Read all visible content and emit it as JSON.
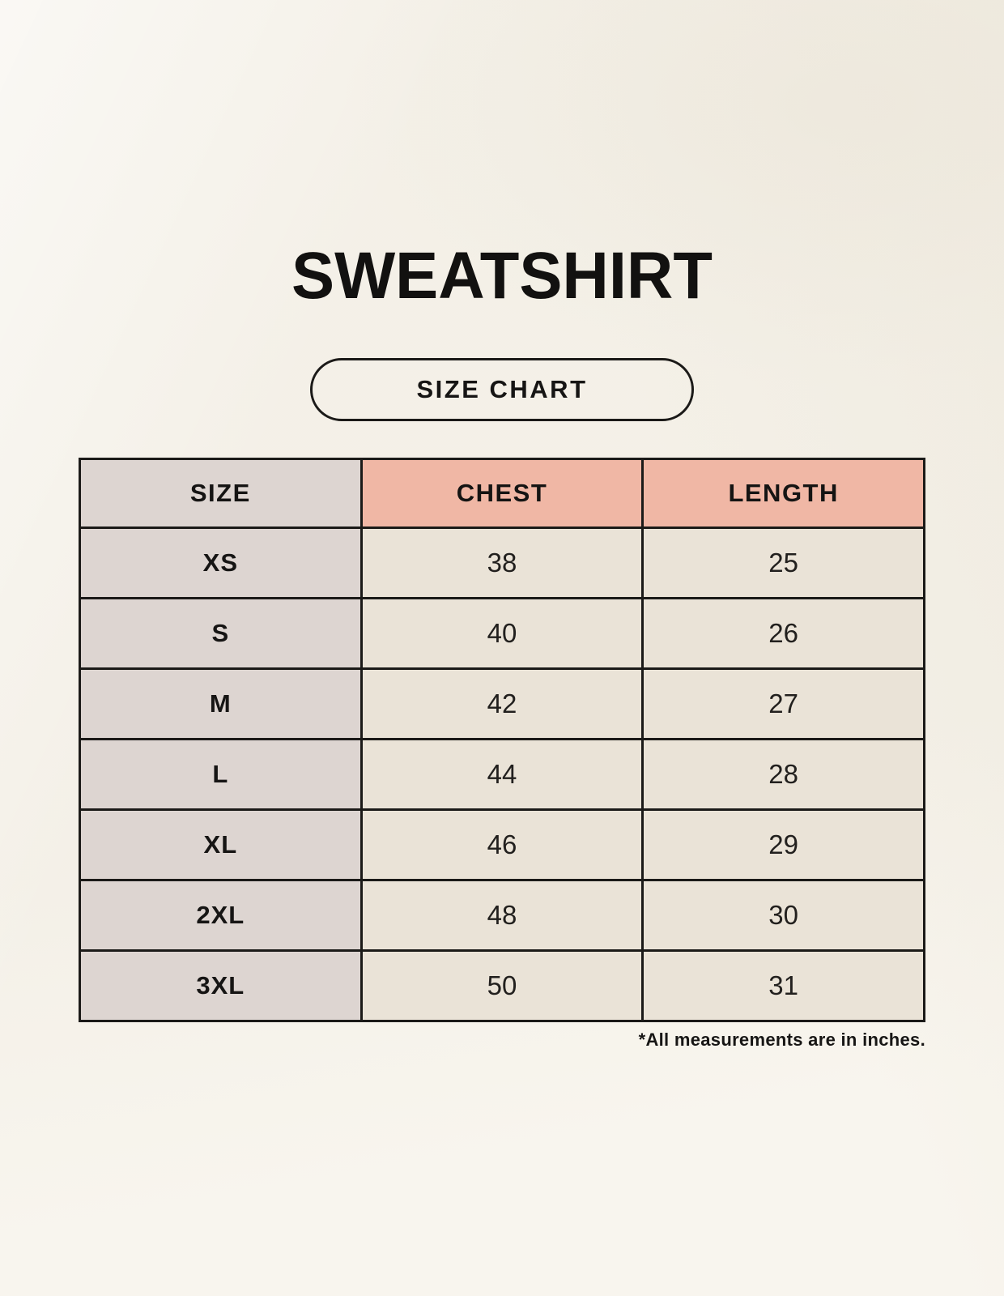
{
  "header": {
    "title": "SWEATSHIRT",
    "badge_label": "SIZE CHART"
  },
  "chart_data": {
    "type": "table",
    "title": "SWEATSHIRT",
    "subtitle": "SIZE CHART",
    "columns": [
      "SIZE",
      "CHEST",
      "LENGTH"
    ],
    "rows": [
      {
        "size": "XS",
        "chest": 38,
        "length": 25
      },
      {
        "size": "S",
        "chest": 40,
        "length": 26
      },
      {
        "size": "M",
        "chest": 42,
        "length": 27
      },
      {
        "size": "L",
        "chest": 44,
        "length": 28
      },
      {
        "size": "XL",
        "chest": 46,
        "length": 29
      },
      {
        "size": "2XL",
        "chest": 48,
        "length": 30
      },
      {
        "size": "3XL",
        "chest": 50,
        "length": 31
      }
    ],
    "units_note": "*All measurements are in inches.",
    "units": "inches"
  },
  "colors": {
    "background": "#f8f5ee",
    "header_accent": "#f0b7a5",
    "size_column": "#ddd5d1",
    "value_cell": "#eae3d7",
    "border": "#1b1a18",
    "text": "#151413"
  }
}
